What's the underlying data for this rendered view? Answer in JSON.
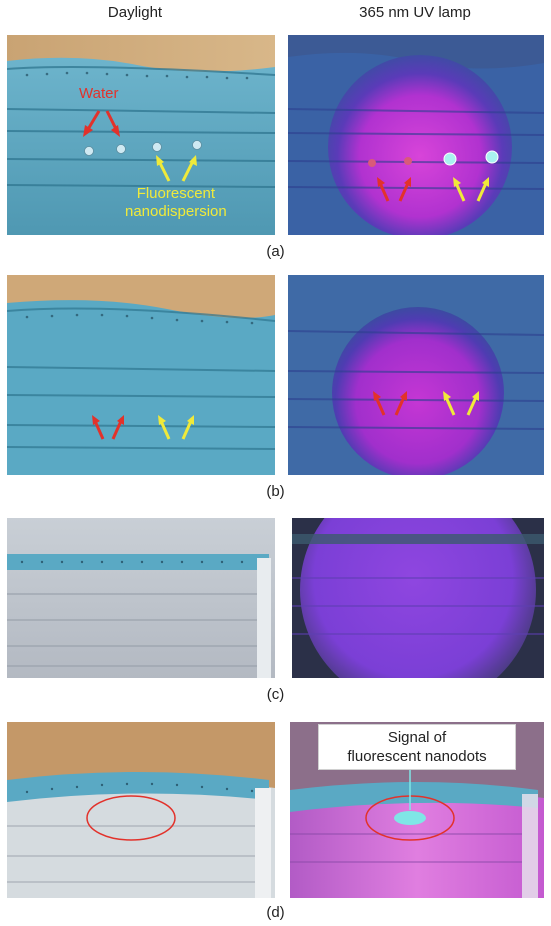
{
  "columns": {
    "left": "Daylight",
    "right": "365 nm UV lamp"
  },
  "captions": {
    "a": "(a)",
    "b": "(b)",
    "c": "(c)",
    "d": "(d)"
  },
  "annotations": {
    "water": "Water",
    "fluor_line1": "Fluorescent",
    "fluor_line2": "nanodispersion",
    "signal_line1": "Signal of",
    "signal_line2": "fluorescent nanodots"
  },
  "colors": {
    "mask_blue": "#5aa9c4",
    "uv_magenta": "#c22fd6",
    "uv_navy": "#2d3f8f",
    "arrow_red": "#e2322b",
    "arrow_yellow": "#f0ea3a",
    "wood": "#c9a373",
    "fluor_spot": "#7fe6e6"
  }
}
